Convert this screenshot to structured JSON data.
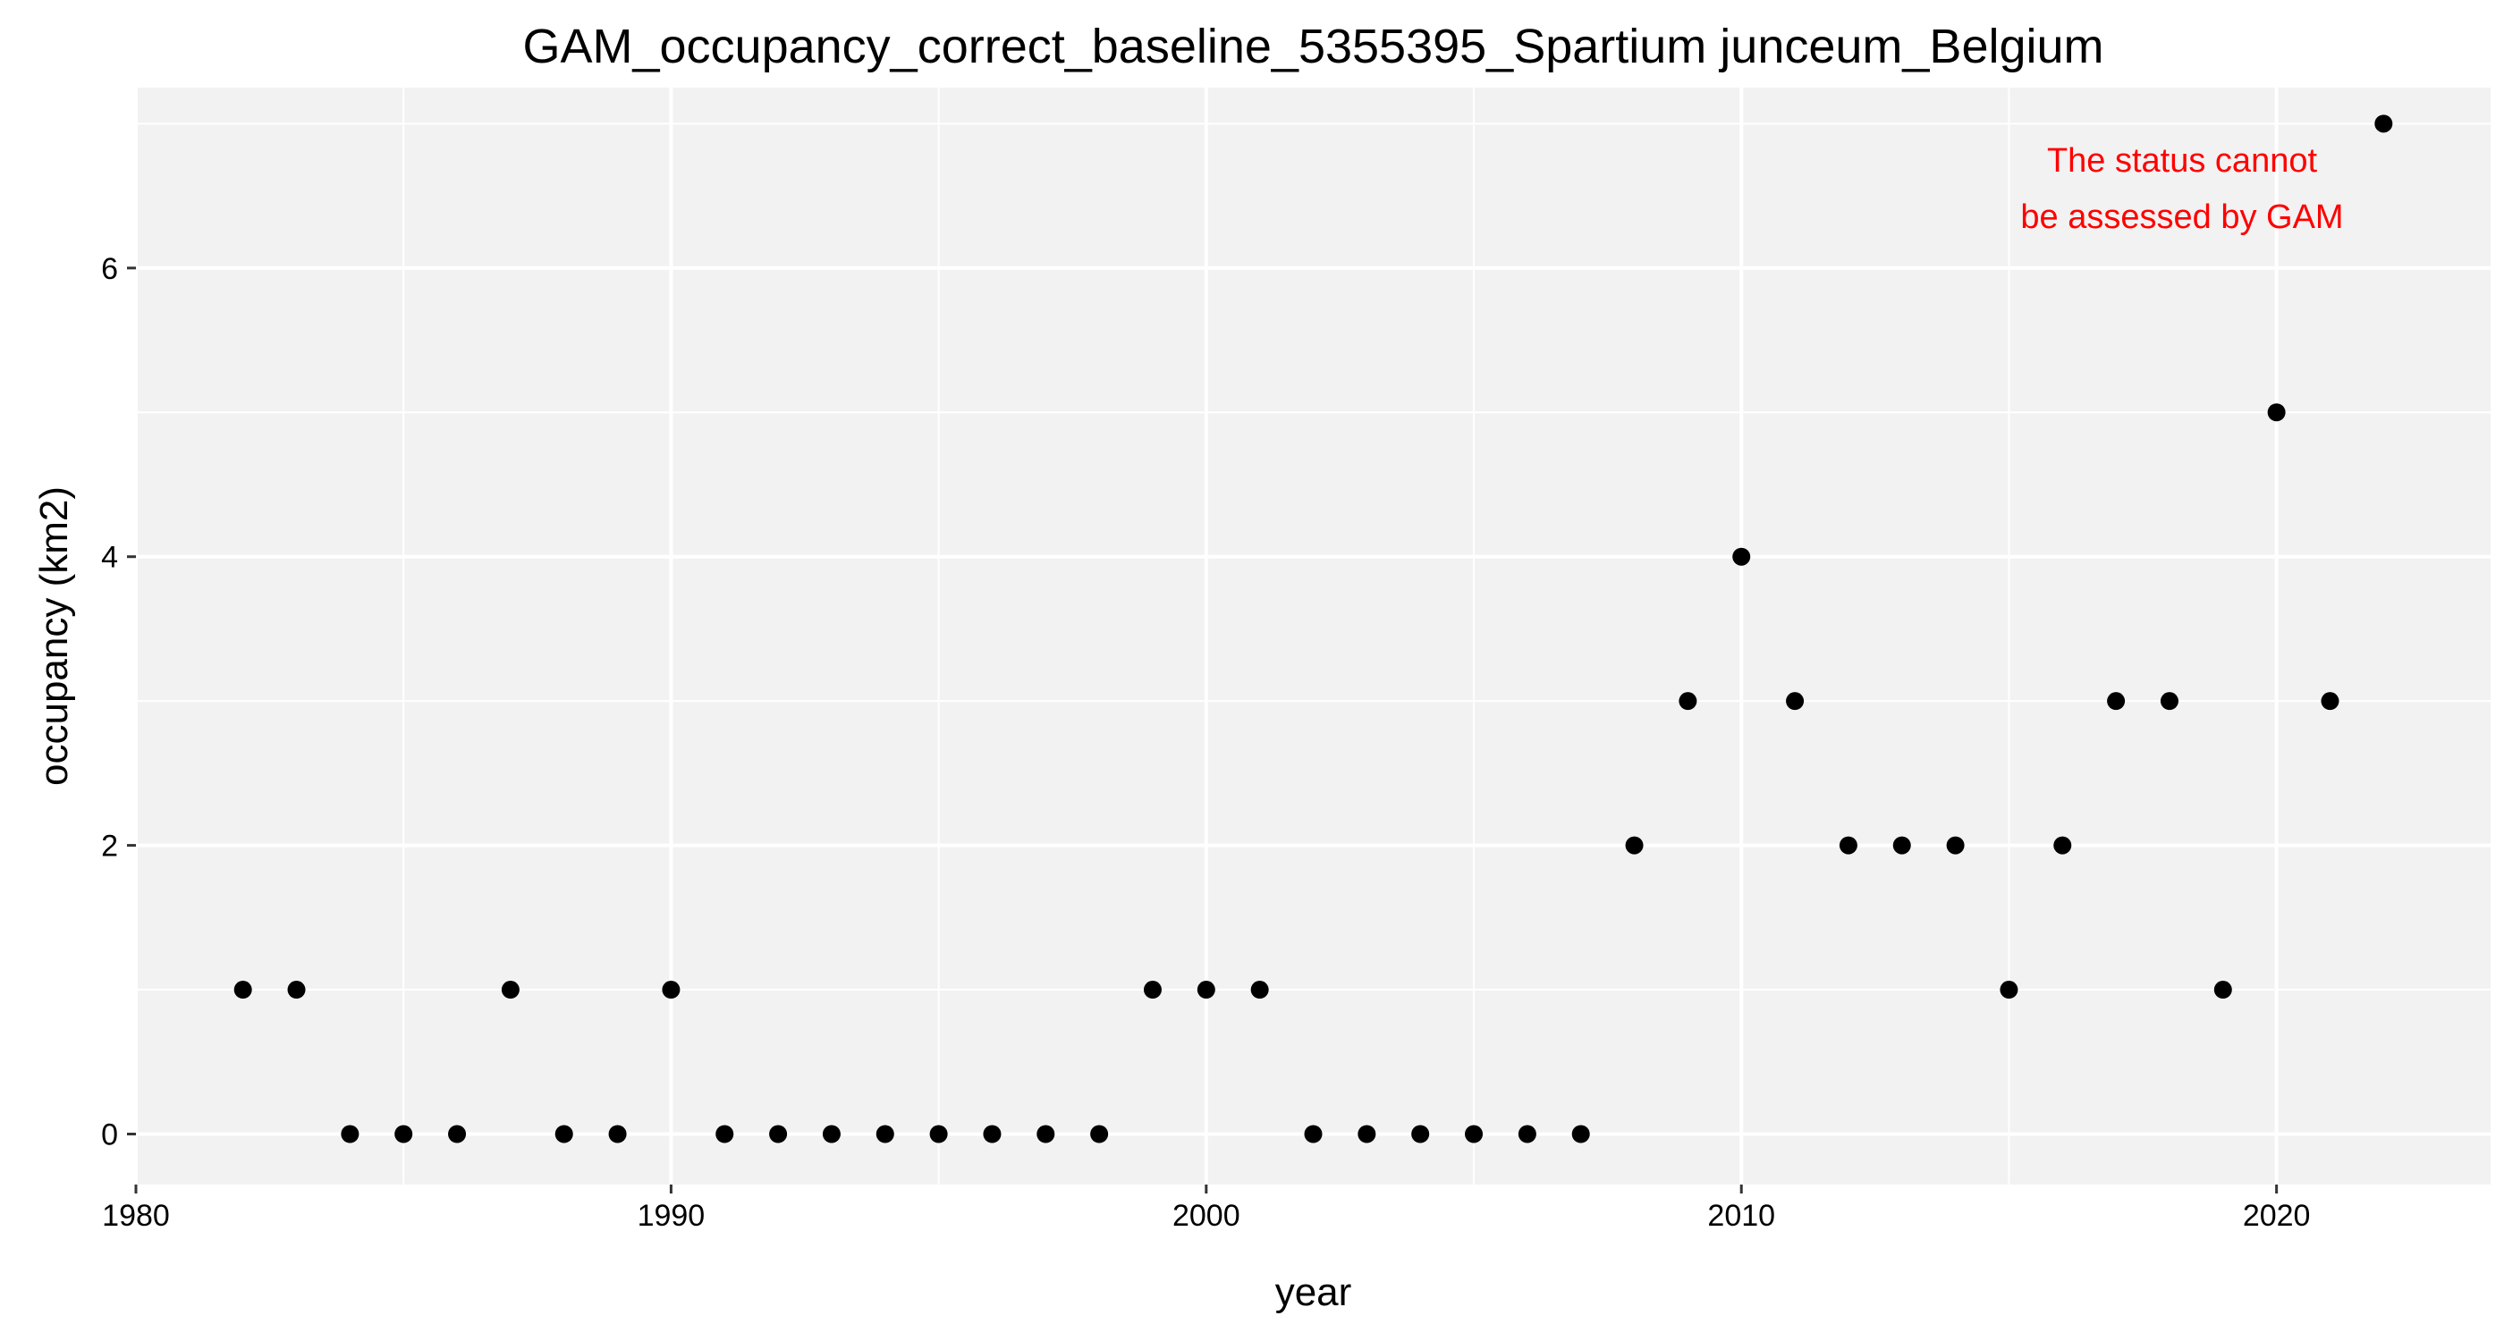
{
  "chart_data": {
    "type": "scatter",
    "title": "GAM_occupancy_correct_baseline_5355395_Spartium junceum_Belgium",
    "xlabel": "year",
    "ylabel": "occupancy (km2)",
    "xlim": [
      1980,
      2024
    ],
    "ylim": [
      -0.35,
      7.25
    ],
    "x_ticks": [
      1980,
      1990,
      2000,
      2010,
      2020
    ],
    "y_ticks": [
      0,
      2,
      4,
      6
    ],
    "grid": true,
    "legend": "none",
    "panel_background": "#f2f2f2",
    "grid_color": "#ffffff",
    "point_color": "#000000",
    "points": [
      {
        "x": 1982,
        "y": 1
      },
      {
        "x": 1983,
        "y": 1
      },
      {
        "x": 1984,
        "y": 0
      },
      {
        "x": 1985,
        "y": 0
      },
      {
        "x": 1986,
        "y": 0
      },
      {
        "x": 1987,
        "y": 1
      },
      {
        "x": 1988,
        "y": 0
      },
      {
        "x": 1989,
        "y": 0
      },
      {
        "x": 1990,
        "y": 1
      },
      {
        "x": 1991,
        "y": 0
      },
      {
        "x": 1992,
        "y": 0
      },
      {
        "x": 1993,
        "y": 0
      },
      {
        "x": 1994,
        "y": 0
      },
      {
        "x": 1995,
        "y": 0
      },
      {
        "x": 1996,
        "y": 0
      },
      {
        "x": 1997,
        "y": 0
      },
      {
        "x": 1998,
        "y": 0
      },
      {
        "x": 1999,
        "y": 1
      },
      {
        "x": 2000,
        "y": 1
      },
      {
        "x": 2001,
        "y": 1
      },
      {
        "x": 2002,
        "y": 0
      },
      {
        "x": 2003,
        "y": 0
      },
      {
        "x": 2004,
        "y": 0
      },
      {
        "x": 2005,
        "y": 0
      },
      {
        "x": 2006,
        "y": 0
      },
      {
        "x": 2007,
        "y": 0
      },
      {
        "x": 2008,
        "y": 2
      },
      {
        "x": 2009,
        "y": 3
      },
      {
        "x": 2010,
        "y": 4
      },
      {
        "x": 2011,
        "y": 3
      },
      {
        "x": 2012,
        "y": 2
      },
      {
        "x": 2013,
        "y": 2
      },
      {
        "x": 2014,
        "y": 2
      },
      {
        "x": 2015,
        "y": 1
      },
      {
        "x": 2016,
        "y": 2
      },
      {
        "x": 2017,
        "y": 3
      },
      {
        "x": 2018,
        "y": 3
      },
      {
        "x": 2019,
        "y": 1
      },
      {
        "x": 2020,
        "y": 5
      },
      {
        "x": 2021,
        "y": 3
      },
      {
        "x": 2022,
        "y": 7
      }
    ],
    "annotation": {
      "lines": [
        "The status cannot",
        "be assessed by GAM"
      ],
      "color": "#ff0000"
    }
  }
}
